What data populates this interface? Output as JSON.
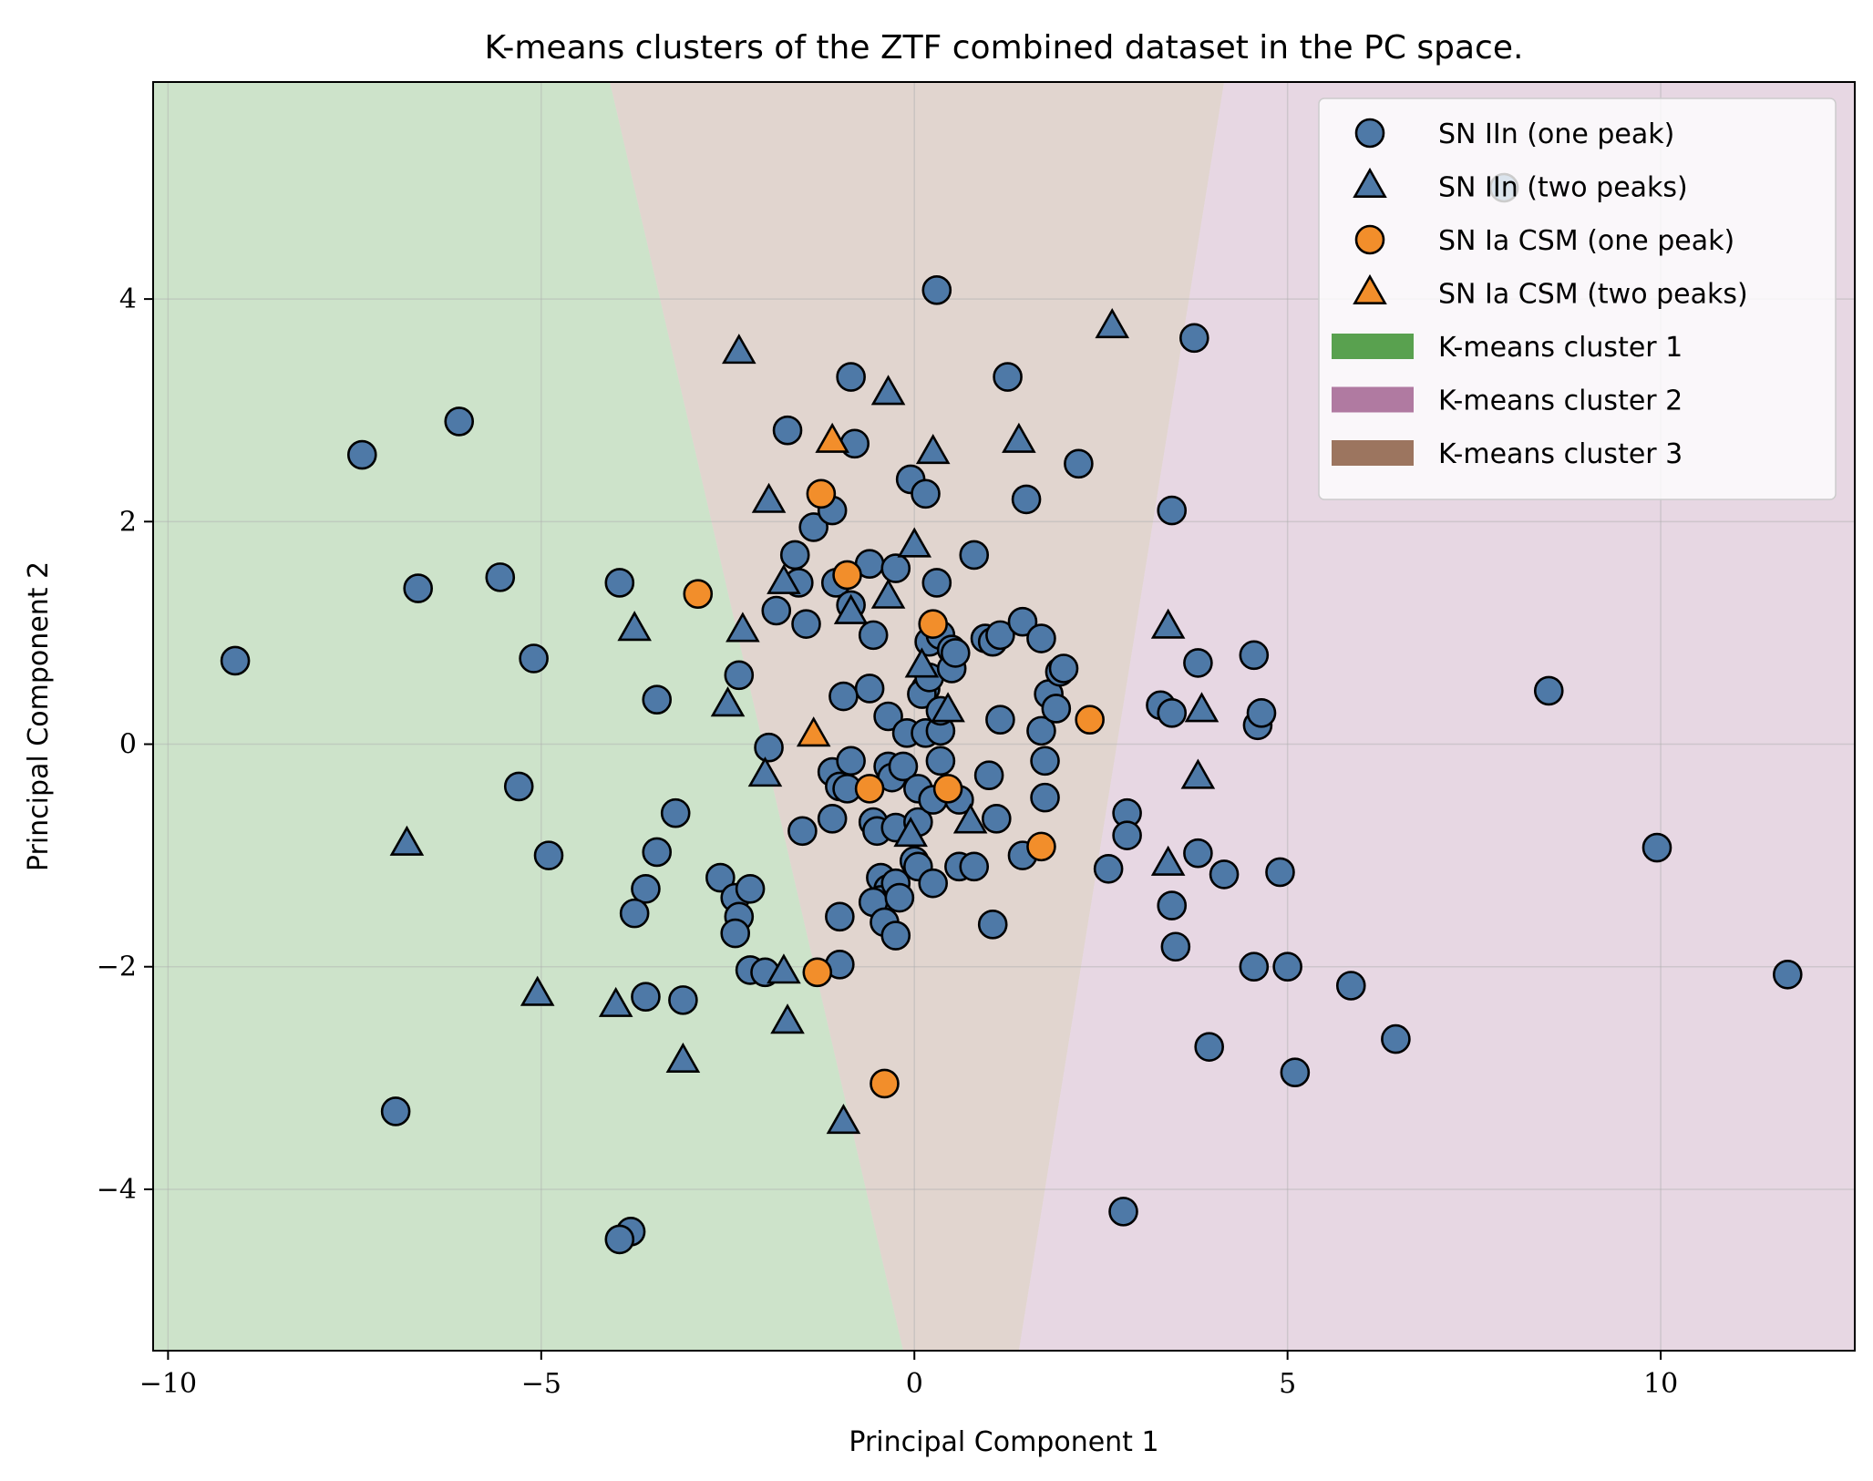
{
  "chart_data": {
    "type": "scatter",
    "title": "K-means clusters of the ZTF combined dataset in the PC space.",
    "xlabel": "Principal Component 1",
    "ylabel": "Principal Component 2",
    "xlim": [
      -10.2,
      12.6
    ],
    "ylim": [
      -5.45,
      5.95
    ],
    "xticks": [
      -10,
      -5,
      0,
      5,
      10
    ],
    "yticks": [
      -4,
      -2,
      0,
      2,
      4
    ],
    "grid": true,
    "legend_position": "top-right",
    "colors": {
      "sn_iin": "#4e79a7",
      "sn_ia_csm": "#f28e2b",
      "cluster_1": "#59a14f",
      "cluster_2": "#b07aa1",
      "cluster_3": "#9c755f"
    },
    "regions": [
      {
        "name": "K-means cluster 1",
        "color": "#59a14f",
        "polygon": [
          [
            -10.2,
            5.95
          ],
          [
            -4.08,
            5.95
          ],
          [
            -0.15,
            -5.45
          ],
          [
            -10.2,
            -5.45
          ]
        ]
      },
      {
        "name": "K-means cluster 3",
        "color": "#9c755f",
        "polygon": [
          [
            -4.08,
            5.95
          ],
          [
            4.15,
            5.95
          ],
          [
            1.4,
            -5.45
          ],
          [
            -0.15,
            -5.45
          ]
        ]
      },
      {
        "name": "K-means cluster 2",
        "color": "#b07aa1",
        "polygon": [
          [
            4.15,
            5.95
          ],
          [
            12.6,
            5.95
          ],
          [
            12.6,
            -5.45
          ],
          [
            1.4,
            -5.45
          ]
        ]
      }
    ],
    "series": [
      {
        "name": "SN IIn (one peak)",
        "marker": "circle",
        "color": "#4e79a7",
        "points": [
          [
            -9.1,
            0.75
          ],
          [
            -7.4,
            2.6
          ],
          [
            -6.1,
            2.9
          ],
          [
            -6.65,
            1.4
          ],
          [
            -5.55,
            1.5
          ],
          [
            -5.1,
            0.77
          ],
          [
            -6.95,
            -3.3
          ],
          [
            -5.3,
            -0.38
          ],
          [
            -4.9,
            -1.0
          ],
          [
            -3.95,
            1.45
          ],
          [
            -3.45,
            0.4
          ],
          [
            -3.2,
            -0.62
          ],
          [
            -3.45,
            -0.97
          ],
          [
            -3.6,
            -1.3
          ],
          [
            -3.75,
            -1.52
          ],
          [
            -3.6,
            -2.27
          ],
          [
            -3.1,
            -2.3
          ],
          [
            -3.8,
            -4.38
          ],
          [
            -3.95,
            -4.45
          ],
          [
            -2.6,
            -1.2
          ],
          [
            -2.4,
            -1.38
          ],
          [
            -2.35,
            -1.55
          ],
          [
            -2.4,
            -1.7
          ],
          [
            -2.2,
            -1.3
          ],
          [
            -2.2,
            -2.03
          ],
          [
            -2.0,
            -2.05
          ],
          [
            -2.35,
            0.62
          ],
          [
            -1.95,
            -0.03
          ],
          [
            -1.85,
            1.2
          ],
          [
            -1.6,
            1.7
          ],
          [
            -1.55,
            1.45
          ],
          [
            -1.45,
            1.08
          ],
          [
            -1.7,
            2.82
          ],
          [
            -1.35,
            1.95
          ],
          [
            -1.5,
            -0.78
          ],
          [
            -1.1,
            2.1
          ],
          [
            -1.05,
            1.45
          ],
          [
            -0.85,
            3.3
          ],
          [
            -0.8,
            2.7
          ],
          [
            -0.85,
            1.25
          ],
          [
            -0.6,
            1.62
          ],
          [
            -0.55,
            0.98
          ],
          [
            -0.6,
            0.5
          ],
          [
            -0.95,
            0.43
          ],
          [
            -1.1,
            -0.25
          ],
          [
            -1.0,
            -0.38
          ],
          [
            -0.9,
            -0.4
          ],
          [
            -0.85,
            -0.15
          ],
          [
            -1.1,
            -0.67
          ],
          [
            -1.0,
            -1.55
          ],
          [
            -1.0,
            -1.98
          ],
          [
            -0.55,
            -0.7
          ],
          [
            -0.5,
            -0.78
          ],
          [
            -0.35,
            -0.2
          ],
          [
            -0.35,
            0.25
          ],
          [
            -0.3,
            -0.3
          ],
          [
            -0.15,
            -0.2
          ],
          [
            -0.25,
            -0.75
          ],
          [
            -0.45,
            -1.2
          ],
          [
            -0.35,
            -1.3
          ],
          [
            -0.45,
            -1.4
          ],
          [
            -0.25,
            -1.25
          ],
          [
            -0.55,
            -1.42
          ],
          [
            -0.4,
            -1.6
          ],
          [
            -0.2,
            -1.38
          ],
          [
            -0.25,
            -1.72
          ],
          [
            -0.05,
            2.38
          ],
          [
            0.15,
            2.25
          ],
          [
            -0.25,
            1.58
          ],
          [
            0.3,
            1.45
          ],
          [
            0.2,
            0.92
          ],
          [
            0.35,
            0.98
          ],
          [
            0.5,
            0.85
          ],
          [
            0.15,
            0.5
          ],
          [
            0.1,
            0.45
          ],
          [
            0.2,
            0.6
          ],
          [
            0.5,
            0.68
          ],
          [
            0.55,
            0.82
          ],
          [
            -0.1,
            0.1
          ],
          [
            0.15,
            0.1
          ],
          [
            0.35,
            0.12
          ],
          [
            0.35,
            0.3
          ],
          [
            0.3,
            4.08
          ],
          [
            0.05,
            -0.4
          ],
          [
            0.35,
            -0.15
          ],
          [
            0.45,
            -0.42
          ],
          [
            0.05,
            -0.7
          ],
          [
            0.25,
            -0.5
          ],
          [
            0.6,
            -0.5
          ],
          [
            0.0,
            -1.05
          ],
          [
            0.05,
            -1.1
          ],
          [
            0.25,
            -1.25
          ],
          [
            0.6,
            -1.1
          ],
          [
            0.8,
            -1.1
          ],
          [
            0.8,
            1.7
          ],
          [
            0.95,
            0.95
          ],
          [
            1.05,
            0.92
          ],
          [
            1.15,
            0.98
          ],
          [
            1.45,
            1.1
          ],
          [
            1.25,
            3.3
          ],
          [
            1.5,
            2.2
          ],
          [
            1.7,
            0.95
          ],
          [
            1.8,
            0.45
          ],
          [
            1.7,
            0.12
          ],
          [
            1.95,
            0.65
          ],
          [
            2.0,
            0.68
          ],
          [
            1.9,
            0.32
          ],
          [
            1.15,
            0.22
          ],
          [
            1.0,
            -0.28
          ],
          [
            1.75,
            -0.15
          ],
          [
            1.75,
            -0.48
          ],
          [
            1.1,
            -0.67
          ],
          [
            1.45,
            -1.0
          ],
          [
            1.05,
            -1.62
          ],
          [
            2.2,
            2.52
          ],
          [
            2.6,
            -1.12
          ],
          [
            2.85,
            -0.62
          ],
          [
            2.85,
            -0.82
          ],
          [
            2.8,
            -4.2
          ],
          [
            3.45,
            2.1
          ],
          [
            3.3,
            0.35
          ],
          [
            3.45,
            0.28
          ],
          [
            3.75,
            3.65
          ],
          [
            3.8,
            0.73
          ],
          [
            3.45,
            -1.45
          ],
          [
            3.5,
            -1.82
          ],
          [
            3.8,
            -0.98
          ],
          [
            4.15,
            -1.17
          ],
          [
            3.95,
            -2.72
          ],
          [
            4.55,
            0.8
          ],
          [
            4.6,
            0.17
          ],
          [
            4.65,
            0.28
          ],
          [
            4.9,
            -1.15
          ],
          [
            4.55,
            -2.0
          ],
          [
            5.0,
            -2.0
          ],
          [
            5.1,
            -2.95
          ],
          [
            5.85,
            -2.17
          ],
          [
            6.45,
            -2.65
          ],
          [
            7.9,
            5.0
          ],
          [
            8.5,
            0.48
          ],
          [
            9.95,
            -0.93
          ],
          [
            11.7,
            -2.07
          ]
        ]
      },
      {
        "name": "SN IIn (two peaks)",
        "marker": "triangle",
        "color": "#4e79a7",
        "points": [
          [
            -6.8,
            -0.9
          ],
          [
            -5.05,
            -2.25
          ],
          [
            -4.0,
            -2.35
          ],
          [
            -3.1,
            -2.85
          ],
          [
            -3.75,
            1.03
          ],
          [
            -2.35,
            3.52
          ],
          [
            -2.3,
            1.02
          ],
          [
            -2.5,
            0.35
          ],
          [
            -2.0,
            -0.28
          ],
          [
            -1.95,
            2.18
          ],
          [
            -1.75,
            1.45
          ],
          [
            -1.75,
            -2.05
          ],
          [
            -1.7,
            -2.5
          ],
          [
            -0.95,
            -3.4
          ],
          [
            -0.85,
            1.18
          ],
          [
            -0.35,
            3.15
          ],
          [
            -0.35,
            1.32
          ],
          [
            0.0,
            1.78
          ],
          [
            0.25,
            2.62
          ],
          [
            0.1,
            0.7
          ],
          [
            0.45,
            0.3
          ],
          [
            -0.05,
            -0.82
          ],
          [
            0.75,
            -0.7
          ],
          [
            1.4,
            2.72
          ],
          [
            2.65,
            3.75
          ],
          [
            3.4,
            1.05
          ],
          [
            3.85,
            0.3
          ],
          [
            3.8,
            -0.3
          ],
          [
            3.4,
            -1.08
          ]
        ]
      },
      {
        "name": "SN Ia CSM (one peak)",
        "marker": "circle",
        "color": "#f28e2b",
        "points": [
          [
            -2.9,
            1.35
          ],
          [
            -1.25,
            2.25
          ],
          [
            -0.9,
            1.52
          ],
          [
            0.25,
            1.08
          ],
          [
            -0.6,
            -0.4
          ],
          [
            0.45,
            -0.4
          ],
          [
            1.7,
            -0.92
          ],
          [
            2.35,
            0.22
          ],
          [
            -1.3,
            -2.05
          ],
          [
            -0.4,
            -3.05
          ]
        ]
      },
      {
        "name": "SN Ia CSM (two peaks)",
        "marker": "triangle",
        "color": "#f28e2b",
        "points": [
          [
            -1.1,
            2.72
          ],
          [
            -1.35,
            0.08
          ]
        ]
      }
    ],
    "legend": [
      {
        "label": "SN IIn (one peak)",
        "marker": "circle",
        "color": "#4e79a7"
      },
      {
        "label": "SN IIn (two peaks)",
        "marker": "triangle",
        "color": "#4e79a7"
      },
      {
        "label": "SN Ia CSM (one peak)",
        "marker": "circle",
        "color": "#f28e2b"
      },
      {
        "label": "SN Ia CSM (two peaks)",
        "marker": "triangle",
        "color": "#f28e2b"
      },
      {
        "label": "K-means cluster 1",
        "marker": "patch",
        "color": "#59a14f"
      },
      {
        "label": "K-means cluster 2",
        "marker": "patch",
        "color": "#b07aa1"
      },
      {
        "label": "K-means cluster 3",
        "marker": "patch",
        "color": "#9c755f"
      }
    ]
  }
}
